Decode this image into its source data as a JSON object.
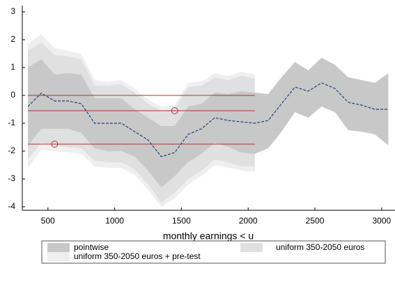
{
  "chart_data": {
    "type": "band",
    "x_label": "monthly earnings < u",
    "x": [
      350,
      450,
      550,
      650,
      750,
      850,
      950,
      1050,
      1150,
      1250,
      1350,
      1450,
      1550,
      1650,
      1750,
      1850,
      1950,
      2050,
      2150,
      2250,
      2350,
      2450,
      2550,
      2650,
      2750,
      2850,
      2950,
      3050
    ],
    "estimate": {
      "color": "#1f3f7a",
      "values": [
        -0.4,
        0.08,
        -0.2,
        -0.2,
        -0.3,
        -1.0,
        -1.0,
        -1.0,
        -1.3,
        -1.6,
        -2.2,
        -2.05,
        -1.4,
        -1.2,
        -0.8,
        -0.9,
        -0.95,
        -1.0,
        -0.9,
        -0.3,
        0.3,
        0.15,
        0.45,
        0.25,
        -0.25,
        -0.35,
        -0.5,
        -0.5
      ]
    },
    "bands": [
      {
        "name": "pointwise",
        "color": "#c8c8c8",
        "upper": [
          1.0,
          1.3,
          0.75,
          0.8,
          0.75,
          -0.1,
          -0.1,
          -0.1,
          -0.5,
          -0.8,
          -1.1,
          -1.1,
          -0.4,
          -0.3,
          0.1,
          0.05,
          0.15,
          0.1,
          0.05,
          0.65,
          1.2,
          0.9,
          1.35,
          1.1,
          0.65,
          0.55,
          0.45,
          0.8
        ],
        "lower": [
          -1.8,
          -1.2,
          -1.2,
          -1.2,
          -1.35,
          -1.9,
          -2.0,
          -2.0,
          -2.2,
          -2.7,
          -3.3,
          -2.9,
          -2.4,
          -2.1,
          -1.7,
          -1.85,
          -2.05,
          -2.1,
          -1.9,
          -1.3,
          -0.6,
          -0.8,
          -0.4,
          -0.6,
          -1.25,
          -1.3,
          -1.4,
          -1.8
        ]
      },
      {
        "name": "uniform 350-2050 euros",
        "color": "#e0e0e0",
        "upper": [
          1.6,
          1.9,
          1.45,
          1.4,
          1.3,
          0.35,
          0.35,
          0.4,
          0.1,
          -0.3,
          -0.55,
          -0.5,
          0.3,
          0.35,
          0.65,
          0.55,
          0.7,
          0.6,
          null,
          null,
          null,
          null,
          null,
          null,
          null,
          null,
          null,
          null
        ],
        "lower": [
          -2.3,
          -1.7,
          -1.8,
          -1.85,
          -1.9,
          -2.35,
          -2.4,
          -2.4,
          -2.65,
          -3.2,
          -3.85,
          -3.5,
          -3.0,
          -2.7,
          -2.3,
          -2.4,
          -2.55,
          -2.55,
          null,
          null,
          null,
          null,
          null,
          null,
          null,
          null,
          null,
          null
        ]
      },
      {
        "name": "uniform 350-2050 euros + pre-test",
        "color": "#efefef",
        "upper": [
          1.85,
          2.2,
          1.7,
          1.6,
          1.5,
          0.55,
          0.5,
          0.55,
          0.25,
          -0.15,
          -0.4,
          -0.35,
          0.45,
          0.5,
          0.8,
          0.7,
          0.85,
          0.75,
          null,
          null,
          null,
          null,
          null,
          null,
          null,
          null,
          null,
          null
        ],
        "lower": [
          -2.6,
          -1.95,
          -2.0,
          -2.05,
          -2.1,
          -2.55,
          -2.6,
          -2.6,
          -2.85,
          -3.4,
          -4.0,
          -3.7,
          -3.2,
          -2.9,
          -2.5,
          -2.6,
          -2.7,
          -2.75,
          null,
          null,
          null,
          null,
          null,
          null,
          null,
          null,
          null,
          null
        ]
      }
    ],
    "hlines": {
      "color": "#b03030",
      "from": 350,
      "to": 2050,
      "values": [
        0,
        -0.55,
        -1.75
      ]
    },
    "points": {
      "color": "#b03030",
      "x": [
        550,
        1450
      ],
      "y": [
        -1.75,
        -0.55
      ]
    },
    "xlim": [
      308,
      3100
    ],
    "ylim": [
      -4.125,
      3.225
    ],
    "xticks": [
      500,
      1000,
      1500,
      2000,
      2500,
      3000
    ],
    "yticks": [
      -4,
      -3,
      -2,
      -1,
      0,
      1,
      2,
      3
    ]
  }
}
